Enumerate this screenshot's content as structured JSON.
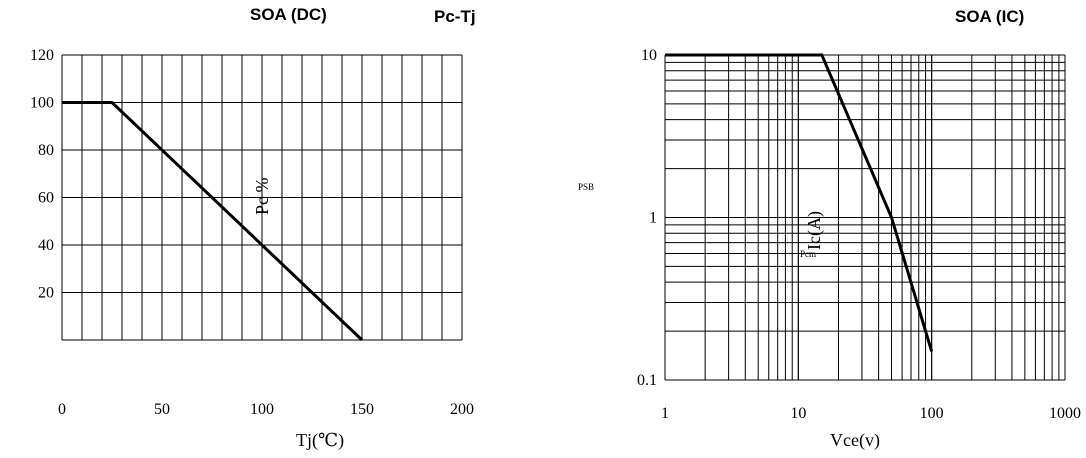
{
  "titles": {
    "soa": "SOA (DC)",
    "pcm_tj": "Pc-Tj",
    "soa_ic_vce": "SOA (IC)"
  },
  "chart_data": [
    {
      "type": "line",
      "title": "Pc-Tj",
      "xlabel": "Tj(℃)",
      "ylabel": "Pc %",
      "xlim": [
        0,
        200
      ],
      "ylim": [
        0,
        120
      ],
      "x_ticks": [
        "0",
        "50",
        "100",
        "150",
        "200"
      ],
      "y_ticks": [
        "20",
        "40",
        "60",
        "80",
        "100",
        "120"
      ],
      "grid": true,
      "series": [
        {
          "x": [
            0,
            25,
            150
          ],
          "y": [
            100,
            100,
            0
          ]
        }
      ]
    },
    {
      "type": "line",
      "title": "SOA (DC)",
      "xlabel": "Vce(v)",
      "ylabel": "Ic(A)",
      "x_scale": "log",
      "y_scale": "log",
      "xlim": [
        1,
        1000
      ],
      "ylim": [
        0.1,
        10
      ],
      "x_ticks": [
        "1",
        "10",
        "100",
        "1000"
      ],
      "y_ticks": [
        "0.1",
        "1",
        "10"
      ],
      "grid": true,
      "series": [
        {
          "x": [
            1,
            15,
            50,
            100
          ],
          "y": [
            10,
            10,
            1,
            0.15
          ]
        }
      ]
    }
  ],
  "labels": {
    "ic_label": "Ic(A)",
    "pc_label": "Pc %",
    "pcm_label": "Pcm",
    "psb_label": "PSB"
  },
  "colors": {
    "ink": "#000000",
    "tick_highlight": "#d9a24a",
    "tick_accent": "#7fb3c9"
  }
}
